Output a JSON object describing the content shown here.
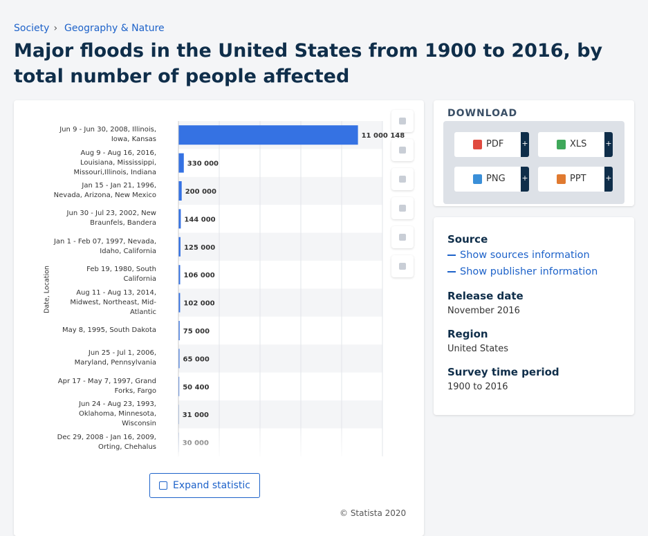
{
  "breadcrumb": {
    "items": [
      "Society",
      "Geography & Nature"
    ],
    "separator": "›"
  },
  "title": "Major floods in the United States from 1900 to 2016, by total number of people affected",
  "chart_data": {
    "type": "bar",
    "horizontal": true,
    "y_label": "Date, Location",
    "categories": [
      "Jun 9 - Jun 30, 2008, Illinois, Iowa, Kansas",
      "Aug 9 - Aug 16, 2016, Louisiana, Mississippi, Missouri,Illinois, Indiana",
      "Jan 15 - Jan 21, 1996, Nevada, Arizona, New Mexico",
      "Jun 30 - Jul 23, 2002, New Braunfels, Bandera",
      "Jan 1 - Feb 07, 1997, Nevada, Idaho, California",
      "Feb 19, 1980, South California",
      "Aug 11 - Aug 13, 2014, Midwest, Northeast, Mid-Atlantic",
      "May 8, 1995, South Dakota",
      "Jun 25 - Jul 1, 2006, Maryland, Pennsylvania",
      "Apr 17 - May 7, 1997, Grand Forks, Fargo",
      "Jun 24 - Aug 23, 1993, Oklahoma, Minnesota, Wisconsin",
      "Dec 29, 2008 - Jan 16, 2009, Orting, Chehalus"
    ],
    "values": [
      11000148,
      330000,
      200000,
      144000,
      125000,
      106000,
      102000,
      75000,
      65000,
      50400,
      31000,
      30000
    ],
    "value_labels": [
      "11 000 148",
      "330 000",
      "200 000",
      "144 000",
      "125 000",
      "106 000",
      "102 000",
      "75 000",
      "65 000",
      "50 400",
      "31 000",
      "30 000"
    ],
    "color": "#3572e3",
    "xlim": [
      0,
      12500000
    ],
    "xticks": [
      0,
      2500000,
      5000000,
      7500000,
      10000000,
      12500000
    ],
    "grid": true
  },
  "expand_button": "Expand statistic",
  "copyright": "© Statista 2020",
  "download": {
    "heading": "DOWNLOAD",
    "formats": [
      "PDF",
      "XLS",
      "PNG",
      "PPT"
    ],
    "plus": "+"
  },
  "details": {
    "source_heading": "Source",
    "links": [
      "Show sources information",
      "Show publisher information"
    ],
    "fields": [
      {
        "label": "Release date",
        "value": "November 2016"
      },
      {
        "label": "Region",
        "value": "United States"
      },
      {
        "label": "Survey time period",
        "value": "1900 to 2016"
      }
    ]
  }
}
